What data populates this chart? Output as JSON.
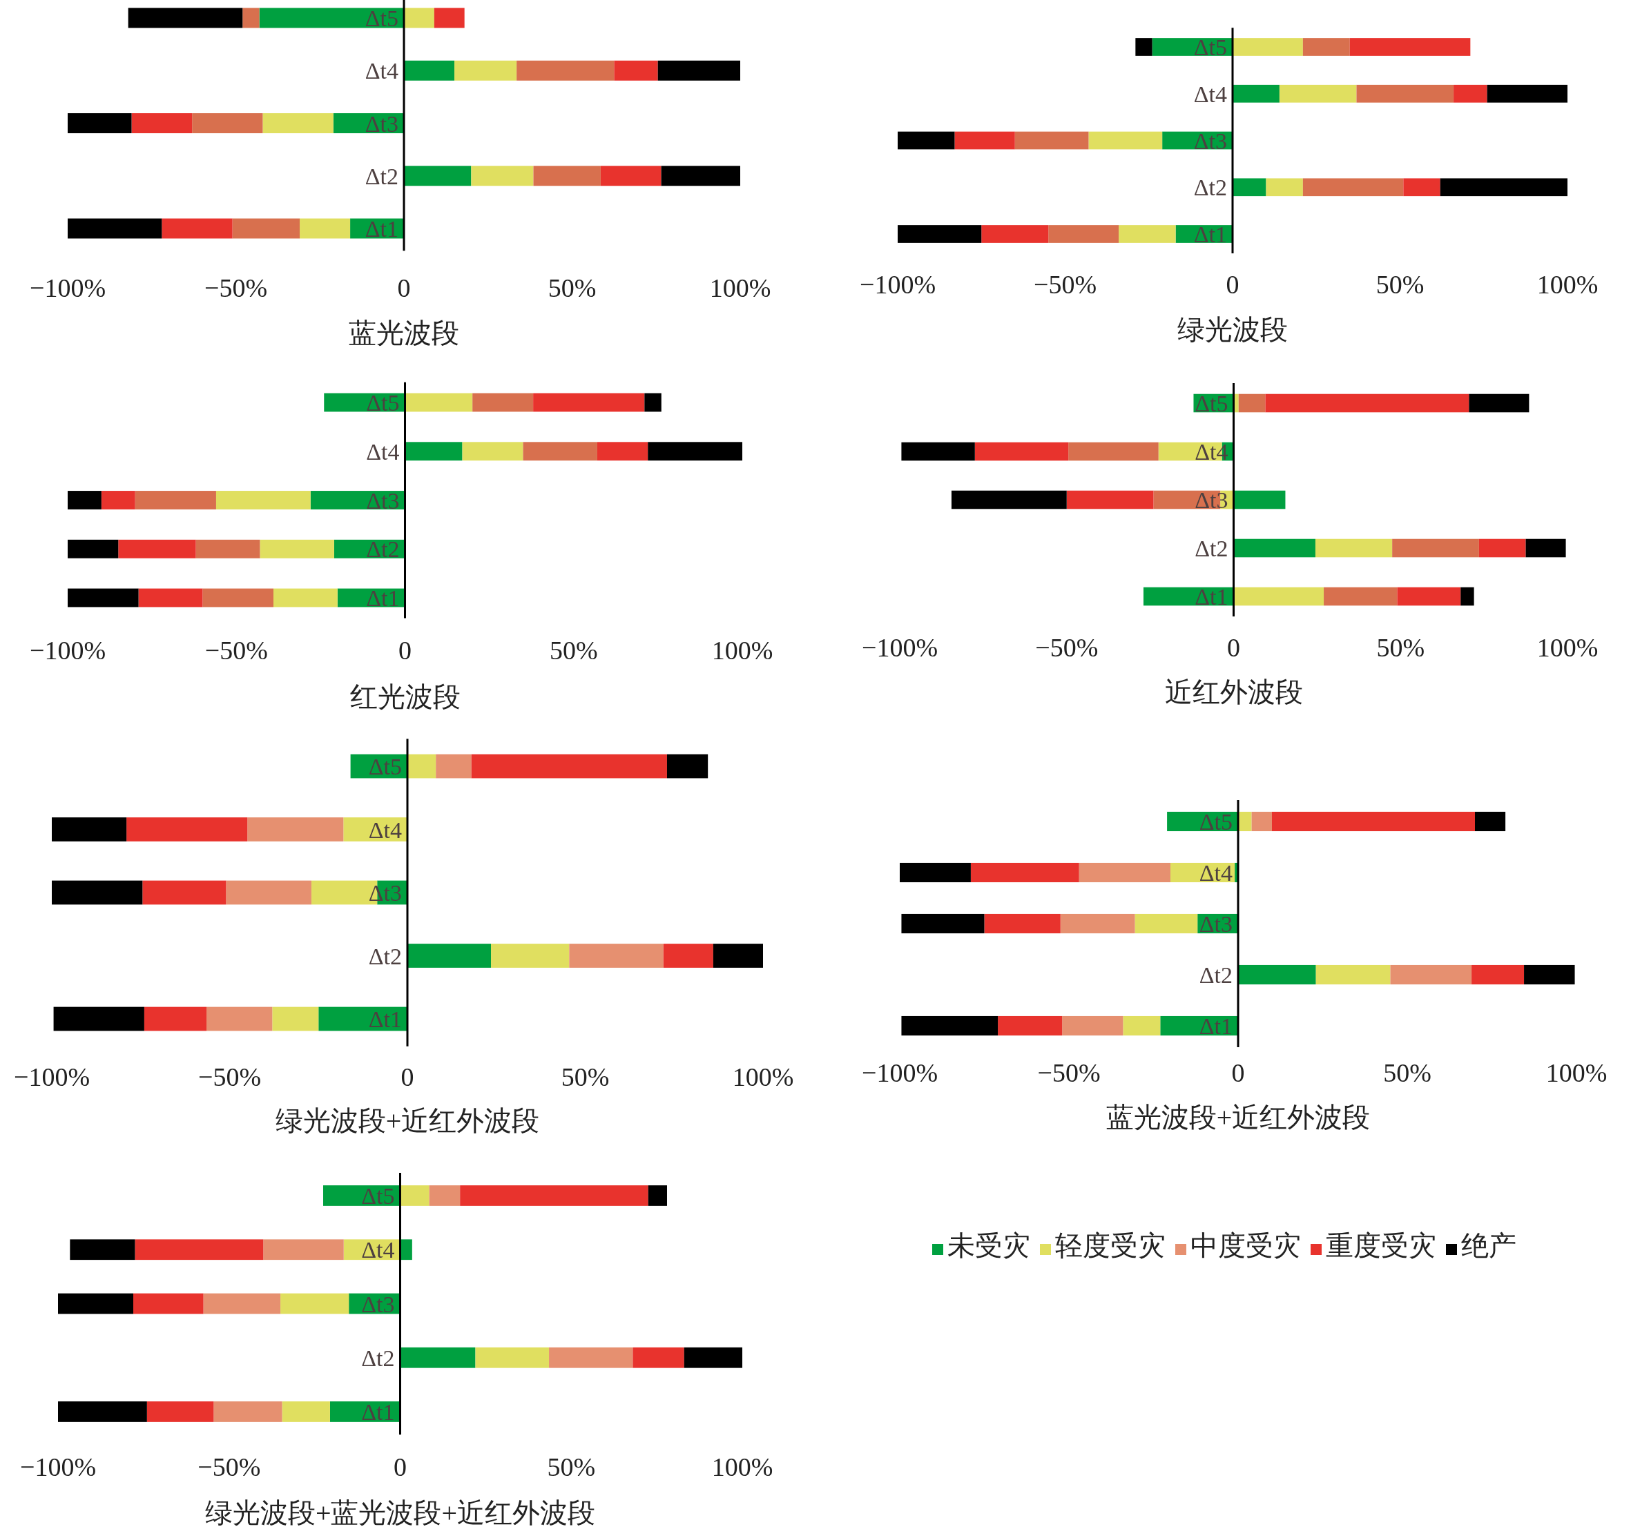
{
  "chart_data": [
    {
      "type": "bar",
      "orientation": "horizontal",
      "stacked": true,
      "xlabel": "蓝光波段",
      "categories": [
        "Δt5",
        "Δt4",
        "Δt3",
        "Δt2",
        "Δt1"
      ],
      "xlim": [
        -100,
        100
      ],
      "xticks": [
        {
          "value": -100,
          "label": "−100%"
        },
        {
          "value": -50,
          "label": "−50%"
        },
        {
          "value": 0,
          "label": "0"
        },
        {
          "value": 50,
          "label": "50%"
        },
        {
          "value": 100,
          "label": "100%"
        }
      ],
      "series": [
        {
          "color": "#00a040",
          "values": [
            -43,
            15,
            -21,
            20,
            -16
          ]
        },
        {
          "color": "#e0df60",
          "values": [
            9,
            18.5,
            -21,
            18.5,
            -15
          ]
        },
        {
          "color": "#d8704e",
          "values": [
            -5,
            29,
            -21,
            20,
            -20
          ]
        },
        {
          "color": "#e8332d",
          "values": [
            9,
            13,
            -18,
            18,
            -21
          ]
        },
        {
          "color": "#000000",
          "values": [
            -34,
            24.5,
            -19,
            23.5,
            -28
          ]
        }
      ]
    },
    {
      "type": "bar",
      "orientation": "horizontal",
      "stacked": true,
      "xlabel": "绿光波段",
      "categories": [
        "Δt5",
        "Δt4",
        "Δt3",
        "Δt2",
        "Δt1"
      ],
      "xlim": [
        -100,
        100
      ],
      "xticks": [
        {
          "value": -100,
          "label": "−100%"
        },
        {
          "value": -50,
          "label": "−50%"
        },
        {
          "value": 0,
          "label": "0"
        },
        {
          "value": 50,
          "label": "50%"
        },
        {
          "value": 100,
          "label": "100%"
        }
      ],
      "series": [
        {
          "color": "#00a040",
          "values": [
            -24,
            14,
            -21,
            10,
            -17
          ]
        },
        {
          "color": "#e0df60",
          "values": [
            21,
            23,
            -22,
            11,
            -17
          ]
        },
        {
          "color": "#d8704e",
          "values": [
            14,
            29,
            -22,
            30,
            -21
          ]
        },
        {
          "color": "#e8332d",
          "values": [
            36,
            10,
            -18,
            11,
            -20
          ]
        },
        {
          "color": "#000000",
          "values": [
            -5,
            24,
            -17,
            38,
            -25
          ]
        }
      ]
    },
    {
      "type": "bar",
      "orientation": "horizontal",
      "stacked": true,
      "xlabel": "红光波段",
      "categories": [
        "Δt5",
        "Δt4",
        "Δt3",
        "Δt2",
        "Δt1"
      ],
      "xlim": [
        -100,
        100
      ],
      "xticks": [
        {
          "value": -100,
          "label": "−100%"
        },
        {
          "value": -50,
          "label": "−50%"
        },
        {
          "value": 0,
          "label": "0"
        },
        {
          "value": 50,
          "label": "50%"
        },
        {
          "value": 100,
          "label": "100%"
        }
      ],
      "series": [
        {
          "color": "#00a040",
          "values": [
            -24,
            17,
            -28,
            -21,
            -20
          ]
        },
        {
          "color": "#e0df60",
          "values": [
            20,
            18,
            -28,
            -22,
            -19
          ]
        },
        {
          "color": "#d8704e",
          "values": [
            18,
            22,
            -24,
            -19,
            -21
          ]
        },
        {
          "color": "#e8332d",
          "values": [
            33,
            15,
            -10,
            -23,
            -19
          ]
        },
        {
          "color": "#000000",
          "values": [
            5,
            28,
            -10,
            -15,
            -21
          ]
        }
      ]
    },
    {
      "type": "bar",
      "orientation": "horizontal",
      "stacked": true,
      "xlabel": "近红外波段",
      "categories": [
        "Δt5",
        "Δt4",
        "Δt3",
        "Δt2",
        "Δt1"
      ],
      "xlim": [
        -100,
        100
      ],
      "xticks": [
        {
          "value": -100,
          "label": "−100%"
        },
        {
          "value": -50,
          "label": "−50%"
        },
        {
          "value": 0,
          "label": "0"
        },
        {
          "value": 50,
          "label": "50%"
        },
        {
          "value": 100,
          "label": "100%"
        }
      ],
      "series": [
        {
          "color": "#00a040",
          "values": [
            -12,
            -3.5,
            15.5,
            24.5,
            -27
          ]
        },
        {
          "color": "#e0df60",
          "values": [
            1.5,
            -19,
            -4,
            23,
            27
          ]
        },
        {
          "color": "#d8704e",
          "values": [
            8,
            -27,
            -20,
            26,
            22
          ]
        },
        {
          "color": "#e8332d",
          "values": [
            61,
            -28,
            -26,
            14,
            19
          ]
        },
        {
          "color": "#000000",
          "values": [
            18,
            -22,
            -34.5,
            12,
            4
          ]
        }
      ]
    },
    {
      "type": "bar",
      "orientation": "horizontal",
      "stacked": true,
      "xlabel": "绿光波段+近红外波段",
      "categories": [
        "Δt5",
        "Δt4",
        "Δt3",
        "Δt2",
        "Δt1"
      ],
      "xlim": [
        -100,
        100
      ],
      "xticks": [
        {
          "value": -100,
          "label": "−100%"
        },
        {
          "value": -50,
          "label": "−50%"
        },
        {
          "value": 0,
          "label": "0"
        },
        {
          "value": 50,
          "label": "50%"
        },
        {
          "value": 100,
          "label": "100%"
        }
      ],
      "series": [
        {
          "color": "#00a040",
          "values": [
            -16,
            0,
            -8.5,
            23.5,
            -25
          ]
        },
        {
          "color": "#e0df60",
          "values": [
            8,
            -18,
            -18.5,
            22,
            -13
          ]
        },
        {
          "color": "#e69070",
          "values": [
            10,
            -27,
            -24,
            26.5,
            -18.5
          ]
        },
        {
          "color": "#e8332d",
          "values": [
            55,
            -34,
            -23.5,
            14,
            -17.5
          ]
        },
        {
          "color": "#000000",
          "values": [
            11.5,
            -21,
            -25.5,
            14,
            -25.5
          ]
        }
      ]
    },
    {
      "type": "bar",
      "orientation": "horizontal",
      "stacked": true,
      "xlabel": "蓝光波段+近红外波段",
      "categories": [
        "Δt5",
        "Δt4",
        "Δt3",
        "Δt2",
        "Δt1"
      ],
      "xlim": [
        -100,
        100
      ],
      "xticks": [
        {
          "value": -100,
          "label": "−100%"
        },
        {
          "value": -50,
          "label": "−50%"
        },
        {
          "value": 0,
          "label": "0"
        },
        {
          "value": 50,
          "label": "50%"
        },
        {
          "value": 100,
          "label": "100%"
        }
      ],
      "series": [
        {
          "color": "#00a040",
          "values": [
            -21,
            -1,
            -12,
            23,
            -23
          ]
        },
        {
          "color": "#e0df60",
          "values": [
            4,
            -19,
            -18.5,
            22,
            -11
          ]
        },
        {
          "color": "#e69070",
          "values": [
            6,
            -27,
            -22,
            24,
            -18
          ]
        },
        {
          "color": "#e8332d",
          "values": [
            60,
            -32,
            -22.5,
            15.5,
            -19
          ]
        },
        {
          "color": "#000000",
          "values": [
            9,
            -21,
            -24.5,
            15,
            -28.5
          ]
        }
      ]
    },
    {
      "type": "bar",
      "orientation": "horizontal",
      "stacked": true,
      "xlabel": "绿光波段+蓝光波段+近红外波段",
      "categories": [
        "Δt5",
        "Δt4",
        "Δt3",
        "Δt2",
        "Δt1"
      ],
      "xlim": [
        -100,
        100
      ],
      "xticks": [
        {
          "value": -100,
          "label": "−100%"
        },
        {
          "value": -50,
          "label": "−50%"
        },
        {
          "value": 0,
          "label": "0"
        },
        {
          "value": 50,
          "label": "50%"
        },
        {
          "value": 100,
          "label": "100%"
        }
      ],
      "legend": "right",
      "series": [
        {
          "name": "未受灾",
          "color": "#00a040",
          "values": [
            -22.5,
            3.5,
            -15,
            22,
            -20.5
          ]
        },
        {
          "name": "轻度受灾",
          "color": "#e0df60",
          "values": [
            8.5,
            -16.5,
            -20,
            21.5,
            -14
          ]
        },
        {
          "name": "中度受灾",
          "color": "#e69070",
          "values": [
            9,
            -23.5,
            -22.5,
            24.5,
            -20
          ]
        },
        {
          "name": "重度受灾",
          "color": "#e8332d",
          "values": [
            55,
            -37.5,
            -20.5,
            15,
            -19.5
          ]
        },
        {
          "name": "绝产",
          "color": "#000000",
          "values": [
            5.5,
            -19,
            -22,
            17,
            -26
          ]
        }
      ]
    }
  ]
}
